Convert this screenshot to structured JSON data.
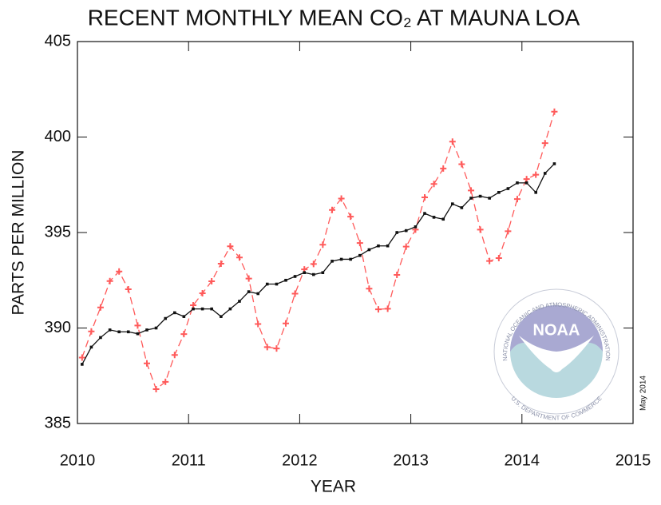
{
  "chart_data": {
    "type": "line",
    "title": "RECENT MONTHLY MEAN CO₂ AT MAUNA LOA",
    "x_label": "YEAR",
    "y_label": "PARTS PER MILLION",
    "annotation": "May 2014",
    "logo": {
      "label": "NOAA",
      "ring_top": "NATIONAL OCEANIC AND ATMOSPHERIC ADMINISTRATION",
      "ring_bottom": "U.S. DEPARTMENT OF COMMERCE"
    },
    "xlim": [
      2010,
      2015
    ],
    "xticks": [
      2010,
      2011,
      2012,
      2013,
      2014,
      2015
    ],
    "ylim": [
      385,
      405
    ],
    "yticks": [
      385,
      390,
      395,
      400,
      405
    ],
    "x": [
      2010.042,
      2010.125,
      2010.208,
      2010.292,
      2010.375,
      2010.458,
      2010.542,
      2010.625,
      2010.708,
      2010.792,
      2010.875,
      2010.958,
      2011.042,
      2011.125,
      2011.208,
      2011.292,
      2011.375,
      2011.458,
      2011.542,
      2011.625,
      2011.708,
      2011.792,
      2011.875,
      2011.958,
      2012.042,
      2012.125,
      2012.208,
      2012.292,
      2012.375,
      2012.458,
      2012.542,
      2012.625,
      2012.708,
      2012.792,
      2012.875,
      2012.958,
      2013.042,
      2013.125,
      2013.208,
      2013.292,
      2013.375,
      2013.458,
      2013.542,
      2013.625,
      2013.708,
      2013.792,
      2013.875,
      2013.958,
      2014.042,
      2014.125,
      2014.208,
      2014.292
    ],
    "series": [
      {
        "color": "#ff5a5a",
        "dashed": true,
        "marker": "plus",
        "values": [
          388.45,
          389.82,
          391.08,
          392.46,
          392.96,
          392.03,
          390.13,
          388.15,
          386.8,
          387.18,
          388.59,
          389.68,
          391.19,
          391.82,
          392.45,
          393.37,
          394.28,
          393.69,
          392.59,
          390.21,
          389.0,
          388.93,
          390.24,
          391.8,
          393.07,
          393.35,
          394.36,
          396.18,
          396.78,
          395.83,
          394.45,
          392.06,
          390.98,
          391.01,
          392.78,
          394.26,
          395.15,
          396.84,
          397.54,
          398.35,
          399.76,
          398.58,
          397.2,
          395.15,
          393.51,
          393.66,
          395.07,
          396.75,
          397.8,
          398.03,
          399.68,
          401.33
        ]
      },
      {
        "color": "#111111",
        "dashed": false,
        "marker": "square",
        "values": [
          388.1,
          389.0,
          389.5,
          389.9,
          389.8,
          389.8,
          389.7,
          389.9,
          390.0,
          390.5,
          390.8,
          390.6,
          391.0,
          391.0,
          391.0,
          390.6,
          391.0,
          391.4,
          391.9,
          391.8,
          392.3,
          392.3,
          392.5,
          392.7,
          392.9,
          392.8,
          392.9,
          393.5,
          393.6,
          393.6,
          393.8,
          394.1,
          394.3,
          394.3,
          395.0,
          395.1,
          395.3,
          396.0,
          395.8,
          395.7,
          396.5,
          396.3,
          396.8,
          396.9,
          396.8,
          397.1,
          397.3,
          397.6,
          397.6,
          397.1,
          398.1,
          398.6
        ]
      }
    ]
  }
}
